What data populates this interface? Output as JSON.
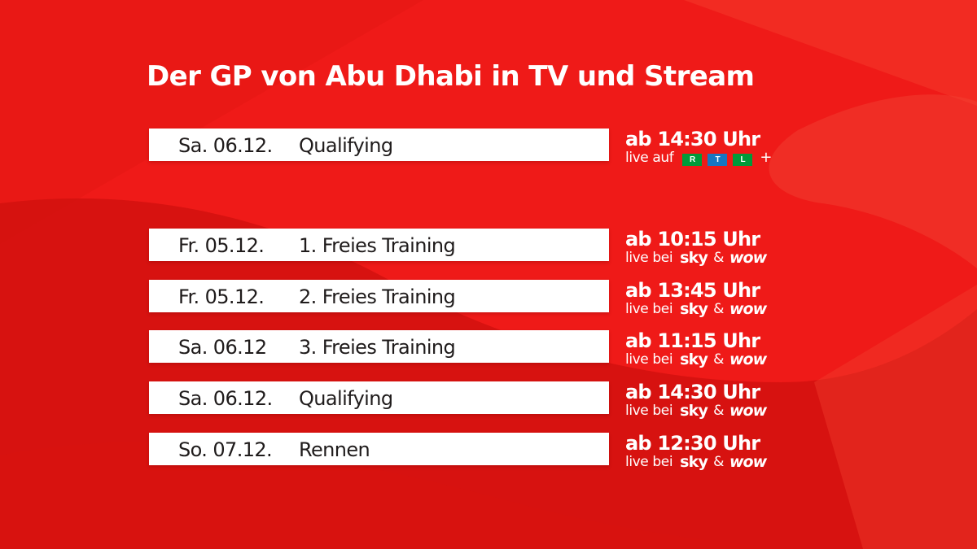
{
  "title": "Der GP von Abu Dhabi in TV und Stream",
  "colors": {
    "background": "#ef1a18",
    "background_dark": "#d5120f",
    "row_background": "#ffffff",
    "row_text": "#1f1b1b",
    "rtl_red": "#d7151c",
    "rtl_green": "#009a3a",
    "rtl_blue": "#1776c2",
    "rtl_yellow": "#f3b400"
  },
  "rtl_session": {
    "date": "Sa. 06.12.",
    "event": "Qualifying",
    "time": "ab 14:30 Uhr",
    "broadcast_prefix": "live auf",
    "logo": {
      "name": "rtl-plus-logo",
      "letters": [
        "R",
        "T",
        "L"
      ],
      "plus": "+"
    }
  },
  "sky_logo": "sky",
  "wow_logo": "wow",
  "sky_sessions": [
    {
      "date": "Fr. 05.12.",
      "event": "1. Freies Training",
      "time": "ab 10:15 Uhr",
      "broadcast_prefix": "live bei",
      "amp": "&"
    },
    {
      "date": "Fr. 05.12.",
      "event": "2. Freies Training",
      "time": "ab 13:45 Uhr",
      "broadcast_prefix": "live bei",
      "amp": "&"
    },
    {
      "date": "Sa. 06.12",
      "event": "3. Freies Training",
      "time": "ab 11:15 Uhr",
      "broadcast_prefix": "live bei",
      "amp": "&"
    },
    {
      "date": "Sa. 06.12.",
      "event": "Qualifying",
      "time": "ab 14:30 Uhr",
      "broadcast_prefix": "live bei",
      "amp": "&"
    },
    {
      "date": "So. 07.12.",
      "event": "Rennen",
      "time": "ab 12:30 Uhr",
      "broadcast_prefix": "live bei",
      "amp": "&"
    }
  ]
}
